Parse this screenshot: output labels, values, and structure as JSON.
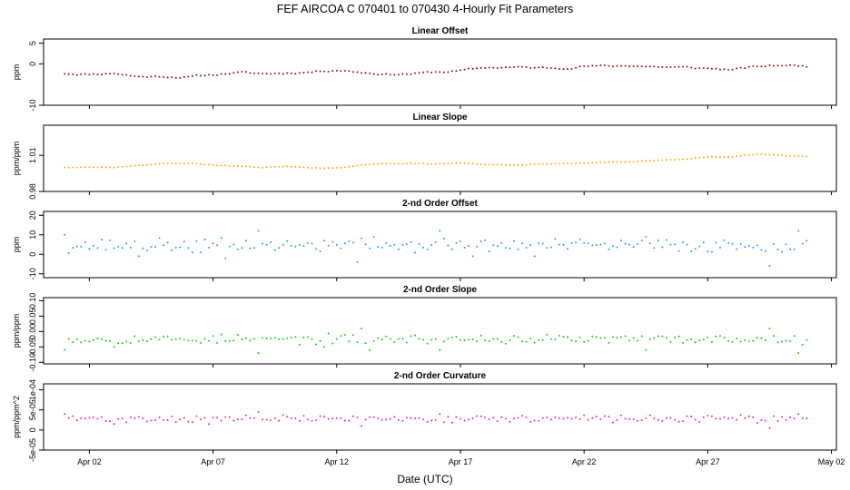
{
  "figure": {
    "title": "FEF   AIRCOA C   070401 to 070430   4-Hourly Fit Parameters",
    "xlabel": "Date (UTC)",
    "x_ticks": [
      "Apr 02",
      "Apr 07",
      "Apr 12",
      "Apr 17",
      "Apr 22",
      "Apr 27",
      "May 02"
    ]
  },
  "chart_data": [
    {
      "type": "scatter",
      "title": "Linear Offset",
      "ylabel": "ppm",
      "color": "#8b0000",
      "x_range": [
        1.0,
        31.0
      ],
      "xlim": [
        0.15,
        32.2
      ],
      "ylim": [
        -10,
        6
      ],
      "y_ticks": [
        5,
        0,
        -10
      ],
      "y_tick_labels": [
        "5",
        "0",
        "-10"
      ],
      "keys": [
        [
          1.0,
          -2.3
        ],
        [
          2.0,
          -2.5
        ],
        [
          3.0,
          -2.2
        ],
        [
          4.0,
          -3.1
        ],
        [
          5.0,
          -3.0
        ],
        [
          6.0,
          -3.2
        ],
        [
          7.0,
          -2.6
        ],
        [
          8.0,
          -2.1
        ],
        [
          9.0,
          -2.4
        ],
        [
          10.0,
          -2.2
        ],
        [
          11.0,
          -1.9
        ],
        [
          12.0,
          -1.4
        ],
        [
          13.0,
          -2.0
        ],
        [
          14.0,
          -2.5
        ],
        [
          15.0,
          -2.4
        ],
        [
          16.0,
          -2.0
        ],
        [
          17.0,
          -1.7
        ],
        [
          18.0,
          -0.9
        ],
        [
          19.0,
          -0.8
        ],
        [
          20.0,
          -1.0
        ],
        [
          21.0,
          -1.0
        ],
        [
          22.0,
          -0.5
        ],
        [
          23.0,
          -0.6
        ],
        [
          24.0,
          -0.4
        ],
        [
          25.0,
          -0.7
        ],
        [
          26.0,
          -0.9
        ],
        [
          27.0,
          -1.1
        ],
        [
          28.0,
          -1.4
        ],
        [
          29.0,
          -0.7
        ],
        [
          30.0,
          -0.3
        ],
        [
          31.0,
          -0.6
        ]
      ],
      "noise": 0.3,
      "seed": 11
    },
    {
      "type": "scatter",
      "title": "Linear Slope",
      "ylabel": "ppm/ppm",
      "color": "#ffa500",
      "x_range": [
        1.0,
        31.0
      ],
      "xlim": [
        0.15,
        32.2
      ],
      "ylim": [
        0.98,
        1.035
      ],
      "y_ticks": [
        1.01,
        0.98
      ],
      "y_tick_labels": [
        "1.01",
        "0.98"
      ],
      "keys": [
        [
          1.0,
          1.0
        ],
        [
          3.0,
          1.0
        ],
        [
          4.0,
          1.002
        ],
        [
          5.0,
          1.003
        ],
        [
          6.0,
          1.0035
        ],
        [
          7.0,
          1.002
        ],
        [
          8.0,
          1.001
        ],
        [
          9.0,
          1.0
        ],
        [
          10.0,
          1.001
        ],
        [
          11.0,
          1.0
        ],
        [
          12.0,
          0.9995
        ],
        [
          13.0,
          1.002
        ],
        [
          14.0,
          1.003
        ],
        [
          15.0,
          1.003
        ],
        [
          16.0,
          1.003
        ],
        [
          17.0,
          1.0035
        ],
        [
          18.0,
          1.0025
        ],
        [
          19.0,
          1.002
        ],
        [
          20.0,
          1.0025
        ],
        [
          21.0,
          1.003
        ],
        [
          22.0,
          1.0035
        ],
        [
          23.0,
          1.004
        ],
        [
          24.0,
          1.0045
        ],
        [
          25.0,
          1.006
        ],
        [
          26.0,
          1.007
        ],
        [
          27.0,
          1.0085
        ],
        [
          28.0,
          1.009
        ],
        [
          29.0,
          1.011
        ],
        [
          30.0,
          1.01
        ],
        [
          31.0,
          1.009
        ]
      ],
      "noise": 0.0004,
      "seed": 23
    },
    {
      "type": "scatter",
      "title": "2-nd Order Offset",
      "ylabel": "ppm",
      "color": "#1e90ff",
      "x_range": [
        1.0,
        31.0
      ],
      "xlim": [
        0.15,
        32.2
      ],
      "ylim": [
        -12,
        22
      ],
      "y_ticks": [
        20,
        10,
        0,
        -10
      ],
      "y_tick_labels": [
        "20",
        "10",
        "0",
        "-10"
      ],
      "base": 4.5,
      "noise": 3.2,
      "spikes": [
        [
          1.0,
          10
        ],
        [
          4.0,
          -1
        ],
        [
          6.5,
          1
        ],
        [
          7.5,
          -2
        ],
        [
          8.8,
          12
        ],
        [
          11.5,
          7
        ],
        [
          12.8,
          -4
        ],
        [
          13.5,
          9
        ],
        [
          16.2,
          12
        ],
        [
          17.5,
          -1
        ],
        [
          20.0,
          -1
        ],
        [
          24.5,
          9
        ],
        [
          29.5,
          -6
        ],
        [
          30.7,
          12
        ]
      ],
      "seed": 37
    },
    {
      "type": "scatter",
      "title": "2-nd Order Slope",
      "ylabel": "ppm/ppm",
      "color": "#00cc00",
      "x_range": [
        1.0,
        31.0
      ],
      "xlim": [
        0.15,
        32.2
      ],
      "ylim": [
        -0.105,
        0.11
      ],
      "y_ticks": [
        0.1,
        0.05,
        0.0,
        -0.05,
        -0.1
      ],
      "y_tick_labels": [
        "0.10",
        "0.05",
        "0.00",
        "-0.05",
        "-0.10"
      ],
      "base": -0.025,
      "noise": 0.014,
      "spikes": [
        [
          1.0,
          -0.06
        ],
        [
          3.0,
          -0.05
        ],
        [
          8.8,
          -0.07
        ],
        [
          11.5,
          -0.05
        ],
        [
          13.0,
          0.01
        ],
        [
          13.4,
          -0.06
        ],
        [
          16.2,
          -0.06
        ],
        [
          24.5,
          -0.06
        ],
        [
          29.5,
          0.01
        ],
        [
          30.7,
          -0.07
        ]
      ],
      "seed": 53
    },
    {
      "type": "scatter",
      "title": "2-nd Order Curvature",
      "ylabel": "ppm/ppm^2",
      "color": "#ff1493",
      "x_range": [
        1.0,
        31.0
      ],
      "xlim": [
        0.15,
        32.2
      ],
      "ylim": [
        -5e-05,
        0.000115
      ],
      "y_ticks": [
        0.0001,
        5e-05,
        0,
        -5e-05
      ],
      "y_tick_labels": [
        "1e-04",
        "5e-05",
        "0",
        "-5e-05"
      ],
      "base": 2.8e-05,
      "noise": 8e-06,
      "spikes": [
        [
          1.0,
          4e-05
        ],
        [
          3.0,
          1.5e-05
        ],
        [
          6.8,
          1.5e-05
        ],
        [
          8.8,
          4.5e-05
        ],
        [
          13.0,
          1e-05
        ],
        [
          16.2,
          4e-05
        ],
        [
          29.5,
          5e-06
        ],
        [
          30.7,
          4e-05
        ]
      ],
      "seed": 71
    }
  ]
}
